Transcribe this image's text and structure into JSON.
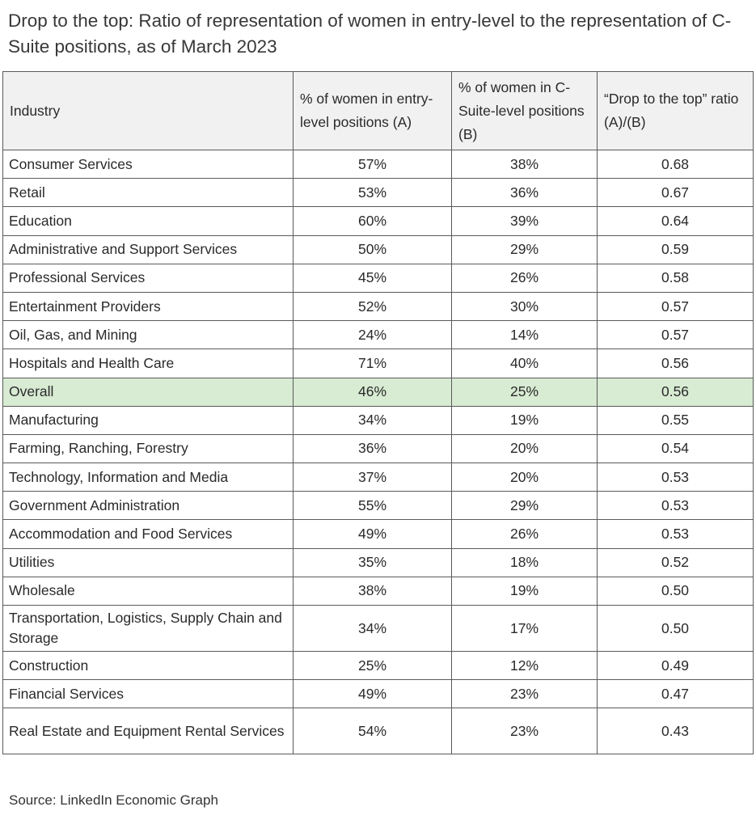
{
  "title": "Drop to the top: Ratio of representation of women in entry-level to the representation of C-Suite positions, as of March 2023",
  "source": "Source: LinkedIn Economic Graph",
  "highlight_color": "#d8ebd3",
  "header_color": "#f1f1f1",
  "chart_data": {
    "type": "table",
    "title": "Drop to the top: Ratio of representation of women in entry-level to the representation of C-Suite positions, as of March 2023",
    "columns": [
      "Industry",
      "% of women in entry-level positions (A)",
      "% of women in C-Suite-level positions (B)",
      "“Drop to the top” ratio (A)/(B)"
    ],
    "highlighted_row": "Overall",
    "rows": [
      [
        "Consumer Services",
        "57%",
        "38%",
        "0.68"
      ],
      [
        "Retail",
        "53%",
        "36%",
        "0.67"
      ],
      [
        "Education",
        "60%",
        "39%",
        "0.64"
      ],
      [
        "Administrative and Support Services",
        "50%",
        "29%",
        "0.59"
      ],
      [
        "Professional Services",
        "45%",
        "26%",
        "0.58"
      ],
      [
        "Entertainment Providers",
        "52%",
        "30%",
        "0.57"
      ],
      [
        "Oil, Gas, and Mining",
        "24%",
        "14%",
        "0.57"
      ],
      [
        "Hospitals and Health Care",
        "71%",
        "40%",
        "0.56"
      ],
      [
        "Overall",
        "46%",
        "25%",
        "0.56"
      ],
      [
        "Manufacturing",
        "34%",
        "19%",
        "0.55"
      ],
      [
        "Farming, Ranching, Forestry",
        "36%",
        "20%",
        "0.54"
      ],
      [
        "Technology, Information and Media",
        "37%",
        "20%",
        "0.53"
      ],
      [
        "Government Administration",
        "55%",
        "29%",
        "0.53"
      ],
      [
        "Accommodation and Food Services",
        "49%",
        "26%",
        "0.53"
      ],
      [
        "Utilities",
        "35%",
        "18%",
        "0.52"
      ],
      [
        "Wholesale",
        "38%",
        "19%",
        "0.50"
      ],
      [
        "Transportation, Logistics, Supply Chain and Storage",
        "34%",
        "17%",
        "0.50"
      ],
      [
        "Construction",
        "25%",
        "12%",
        "0.49"
      ],
      [
        "Financial Services",
        "49%",
        "23%",
        "0.47"
      ],
      [
        "Real Estate and Equipment Rental Services",
        "54%",
        "23%",
        "0.43"
      ]
    ]
  }
}
